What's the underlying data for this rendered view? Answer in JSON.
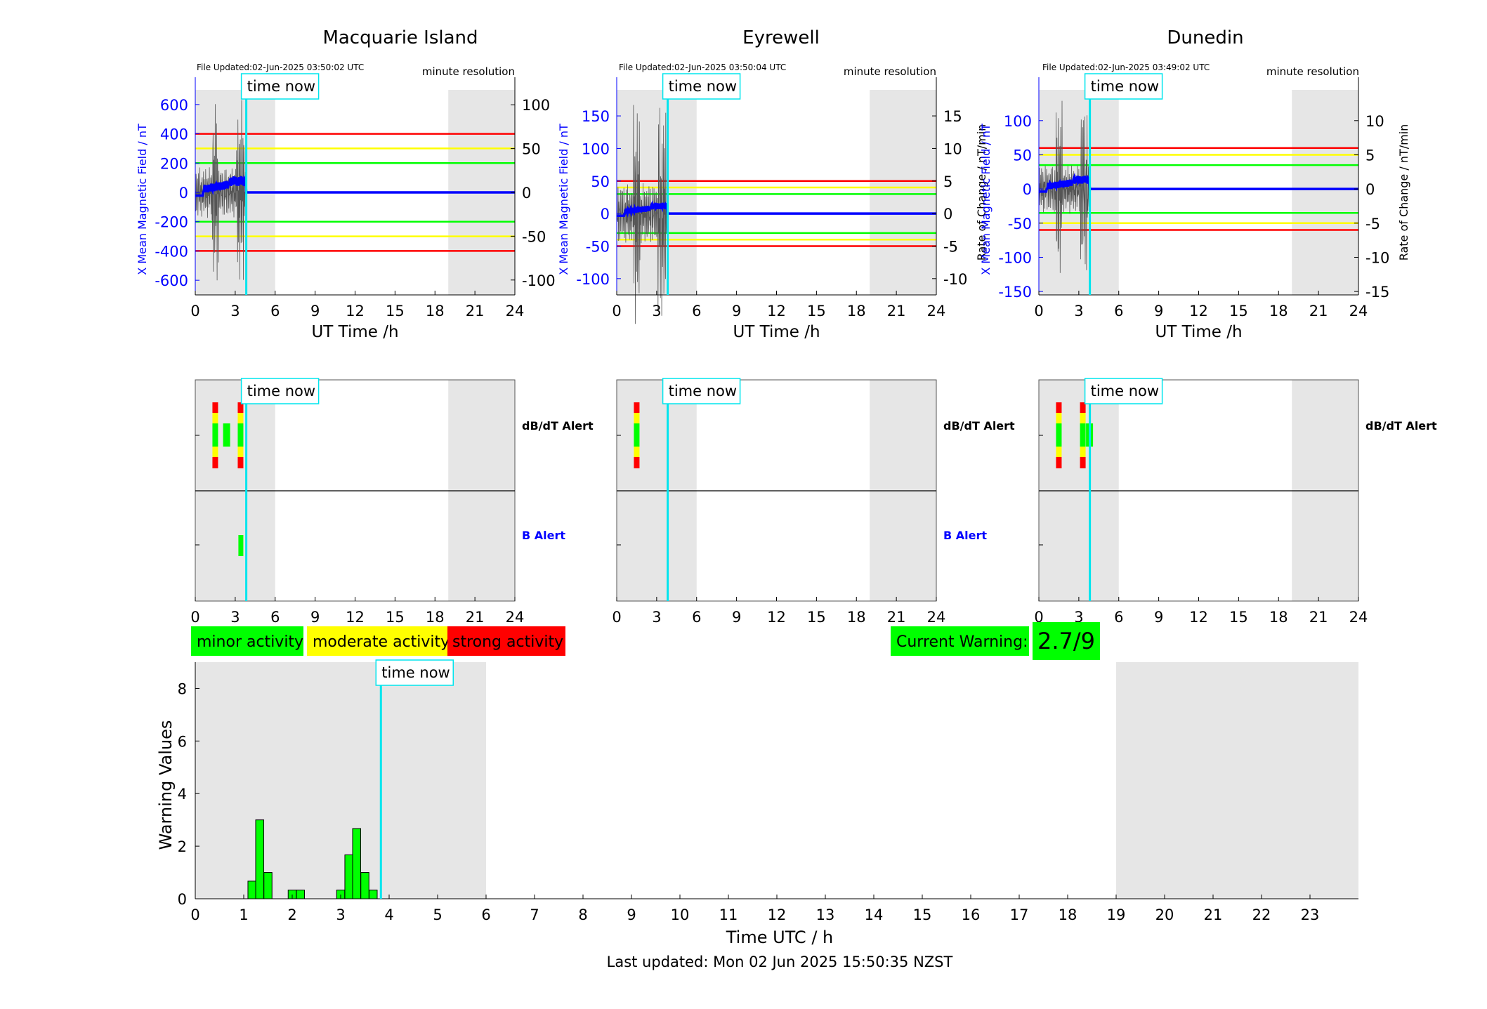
{
  "colors": {
    "red": "#ff0000",
    "yellow": "#ffff00",
    "green": "#00ff00",
    "blue": "#0000ff",
    "cyan": "#00e5ee",
    "night_shade": "#e6e6e6",
    "trace_gray": "#555555"
  },
  "panels": [
    {
      "title": "Macquarie Island",
      "file_updated": "File Updated:02-Jun-2025 03:50:02 UTC",
      "resolution": "minute resolution",
      "left_axis_label": "X Mean Magnetic Field / nT",
      "right_axis_label": "",
      "x_label": "UT Time /h",
      "left_ticks": [
        "600",
        "400",
        "200",
        "0",
        "-200",
        "-400",
        "-600"
      ],
      "left_tick_values": [
        600,
        400,
        200,
        0,
        -200,
        -400,
        -600
      ],
      "left_range": [
        -700,
        700
      ],
      "right_ticks": [
        "100",
        "50",
        "0",
        "-50",
        "-100"
      ],
      "right_tick_values": [
        100,
        50,
        0,
        -50,
        -100
      ],
      "right_range": [
        -117,
        117
      ],
      "thresholds": [
        400,
        300,
        200
      ],
      "time_now": 3.83,
      "shade": [
        [
          0,
          6
        ],
        [
          19,
          24
        ]
      ],
      "dbdt_label": "dB/dT Alert",
      "b_label": "B Alert",
      "dbdt_bars": [
        {
          "t": 1.5,
          "levels": [
            "red",
            "yellow",
            "green",
            "yellow",
            "red"
          ]
        },
        {
          "t": 2.3,
          "levels": [
            "green"
          ]
        },
        {
          "t": 3.4,
          "levels": [
            "red",
            "yellow",
            "green",
            "yellow",
            "red"
          ]
        }
      ],
      "b_bars": [
        {
          "t": 3.45,
          "levels": [
            "green"
          ]
        }
      ]
    },
    {
      "title": "Eyrewell",
      "file_updated": "File Updated:02-Jun-2025 03:50:04 UTC",
      "resolution": "minute resolution",
      "left_axis_label": "X Mean Magnetic Field / nT",
      "right_axis_label": "Rate of Change / nT/min",
      "x_label": "UT Time /h",
      "left_ticks": [
        "150",
        "100",
        "50",
        "0",
        "-50",
        "-100"
      ],
      "left_tick_values": [
        150,
        100,
        50,
        0,
        -50,
        -100
      ],
      "left_range": [
        -125,
        190
      ],
      "right_ticks": [
        "15",
        "10",
        "5",
        "0",
        "-5",
        "-10"
      ],
      "right_tick_values": [
        15,
        10,
        5,
        0,
        -5,
        -10
      ],
      "right_range": [
        -12.5,
        19
      ],
      "thresholds": [
        50,
        40,
        30
      ],
      "time_now": 3.83,
      "shade": [
        [
          0,
          6
        ],
        [
          19,
          24
        ]
      ],
      "dbdt_label": "dB/dT Alert",
      "b_label": "B Alert",
      "dbdt_bars": [
        {
          "t": 1.5,
          "levels": [
            "red",
            "yellow",
            "green",
            "yellow",
            "red"
          ]
        }
      ],
      "b_bars": []
    },
    {
      "title": "Dunedin",
      "file_updated": "File Updated:02-Jun-2025 03:49:02 UTC",
      "resolution": "minute resolution",
      "left_axis_label": "X Mean Magnetic Field / nT",
      "right_axis_label": "Rate of Change / nT/min",
      "x_label": "UT Time /h",
      "left_ticks": [
        "100",
        "50",
        "0",
        "-50",
        "-100",
        "-150"
      ],
      "left_tick_values": [
        100,
        50,
        0,
        -50,
        -100,
        -150
      ],
      "left_range": [
        -155,
        145
      ],
      "right_ticks": [
        "10",
        "5",
        "0",
        "-5",
        "-10",
        "-15"
      ],
      "right_tick_values": [
        10,
        5,
        0,
        -5,
        -10,
        -15
      ],
      "right_range": [
        -15.5,
        14.5
      ],
      "thresholds": [
        60,
        50,
        35
      ],
      "time_now": 3.83,
      "shade": [
        [
          0,
          6
        ],
        [
          19,
          24
        ]
      ],
      "dbdt_label": "dB/dT Alert",
      "b_label": "",
      "dbdt_bars": [
        {
          "t": 1.5,
          "levels": [
            "red",
            "yellow",
            "green",
            "yellow",
            "red"
          ]
        },
        {
          "t": 3.3,
          "levels": [
            "red",
            "yellow",
            "green",
            "yellow",
            "red"
          ]
        },
        {
          "t": 3.75,
          "levels": [
            "green"
          ]
        }
      ],
      "b_bars": []
    }
  ],
  "x_ticks": [
    "0",
    "3",
    "6",
    "9",
    "12",
    "15",
    "18",
    "21",
    "24"
  ],
  "time_now_label": "time now",
  "legend": {
    "minor": "minor activity",
    "moderate": "moderate activity",
    "strong": "strong activity"
  },
  "current_warning": {
    "label": "Current Warning:",
    "value": "2.7/9"
  },
  "chart_data": {
    "type": "bar",
    "x": [
      1.17,
      1.33,
      1.5,
      2.0,
      2.17,
      3.0,
      3.17,
      3.33,
      3.5,
      3.67
    ],
    "values": [
      0.67,
      3.0,
      1.0,
      0.33,
      0.33,
      0.33,
      1.67,
      2.67,
      1.0,
      0.33
    ],
    "bar_width": 0.1667,
    "xlabel": "Time UTC / h",
    "ylabel": "Warning Values",
    "xlim": [
      0,
      24
    ],
    "ylim": [
      0,
      9
    ],
    "x_ticks": [
      "0",
      "1",
      "2",
      "3",
      "4",
      "5",
      "6",
      "7",
      "8",
      "9",
      "10",
      "11",
      "12",
      "13",
      "14",
      "15",
      "16",
      "17",
      "18",
      "19",
      "20",
      "21",
      "22",
      "23"
    ],
    "y_ticks": [
      "0",
      "2",
      "4",
      "6",
      "8"
    ],
    "shade": [
      [
        0,
        6
      ],
      [
        19,
        24
      ]
    ],
    "time_now": 3.83
  },
  "footer": "Last updated: Mon 02 Jun 2025 15:50:35 NZST"
}
